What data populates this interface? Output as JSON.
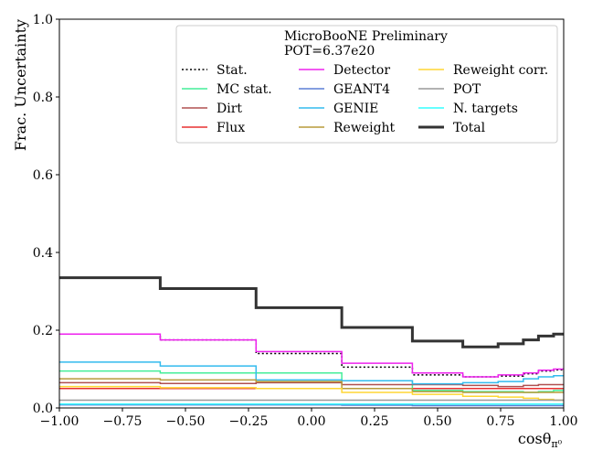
{
  "chart_data": {
    "type": "line",
    "step": true,
    "xlabel": "cosθ",
    "xlabel_sub": "π⁰",
    "ylabel": "Frac. Uncertainty",
    "xlim": [
      -1.0,
      1.0
    ],
    "ylim": [
      0.0,
      1.0
    ],
    "xticks": [
      "−1.00",
      "−0.75",
      "−0.50",
      "−0.25",
      "0.00",
      "0.25",
      "0.50",
      "0.75",
      "1.00"
    ],
    "yticks": [
      "0.0",
      "0.2",
      "0.4",
      "0.6",
      "0.8",
      "1.0"
    ],
    "grid": false,
    "bin_edges": [
      -1.0,
      -0.6,
      -0.22,
      0.12,
      0.4,
      0.6,
      0.74,
      0.84,
      0.9,
      0.96,
      1.0
    ],
    "legend_title": [
      "MicroBooNE Preliminary",
      "POT=6.37e20"
    ],
    "legend_position": "top-right",
    "series": [
      {
        "name": "Stat.",
        "color": "#000000",
        "style": "dotted",
        "width": 1.5,
        "values": [
          0.19,
          0.175,
          0.14,
          0.105,
          0.085,
          0.08,
          0.082,
          0.088,
          0.095,
          0.098
        ]
      },
      {
        "name": "MC stat.",
        "color": "#44ee99",
        "style": "solid",
        "width": 1.5,
        "values": [
          0.095,
          0.09,
          0.09,
          0.07,
          0.045,
          0.042,
          0.042,
          0.04,
          0.042,
          0.045
        ]
      },
      {
        "name": "Dirt",
        "color": "#b05050",
        "style": "solid",
        "width": 1.5,
        "values": [
          0.065,
          0.063,
          0.065,
          0.06,
          0.06,
          0.058,
          0.055,
          0.058,
          0.06,
          0.06
        ]
      },
      {
        "name": "Flux",
        "color": "#e83030",
        "style": "solid",
        "width": 1.5,
        "values": [
          0.05,
          0.05,
          0.05,
          0.05,
          0.05,
          0.05,
          0.05,
          0.05,
          0.05,
          0.05
        ]
      },
      {
        "name": "Detector",
        "color": "#ee22ee",
        "style": "solid",
        "width": 1.5,
        "values": [
          0.19,
          0.175,
          0.145,
          0.115,
          0.09,
          0.08,
          0.085,
          0.09,
          0.097,
          0.1
        ]
      },
      {
        "name": "GEANT4",
        "color": "#5b7ed6",
        "style": "solid",
        "width": 1.5,
        "values": [
          0.008,
          0.008,
          0.008,
          0.007,
          0.006,
          0.006,
          0.006,
          0.006,
          0.006,
          0.006
        ]
      },
      {
        "name": "GENIE",
        "color": "#33bbee",
        "style": "solid",
        "width": 1.5,
        "values": [
          0.118,
          0.108,
          0.072,
          0.07,
          0.062,
          0.065,
          0.068,
          0.075,
          0.08,
          0.083
        ]
      },
      {
        "name": "Reweight",
        "color": "#b89a3a",
        "style": "solid",
        "width": 1.5,
        "values": [
          0.075,
          0.072,
          0.068,
          0.05,
          0.042,
          0.04,
          0.04,
          0.04,
          0.04,
          0.04
        ]
      },
      {
        "name": "Reweight corr.",
        "color": "#ffd633",
        "style": "solid",
        "width": 1.5,
        "values": [
          0.055,
          0.052,
          0.05,
          0.04,
          0.035,
          0.03,
          0.028,
          0.025,
          0.022,
          0.02
        ]
      },
      {
        "name": "POT",
        "color": "#999999",
        "style": "solid",
        "width": 1.5,
        "values": [
          0.02,
          0.02,
          0.02,
          0.02,
          0.02,
          0.02,
          0.02,
          0.02,
          0.02,
          0.02
        ]
      },
      {
        "name": "N. targets",
        "color": "#33ffff",
        "style": "solid",
        "width": 1.5,
        "values": [
          0.01,
          0.01,
          0.01,
          0.01,
          0.01,
          0.01,
          0.01,
          0.01,
          0.01,
          0.01
        ]
      },
      {
        "name": "Total",
        "color": "#333333",
        "style": "solid",
        "width": 3,
        "values": [
          0.335,
          0.307,
          0.258,
          0.207,
          0.172,
          0.157,
          0.165,
          0.175,
          0.185,
          0.19
        ]
      }
    ]
  }
}
